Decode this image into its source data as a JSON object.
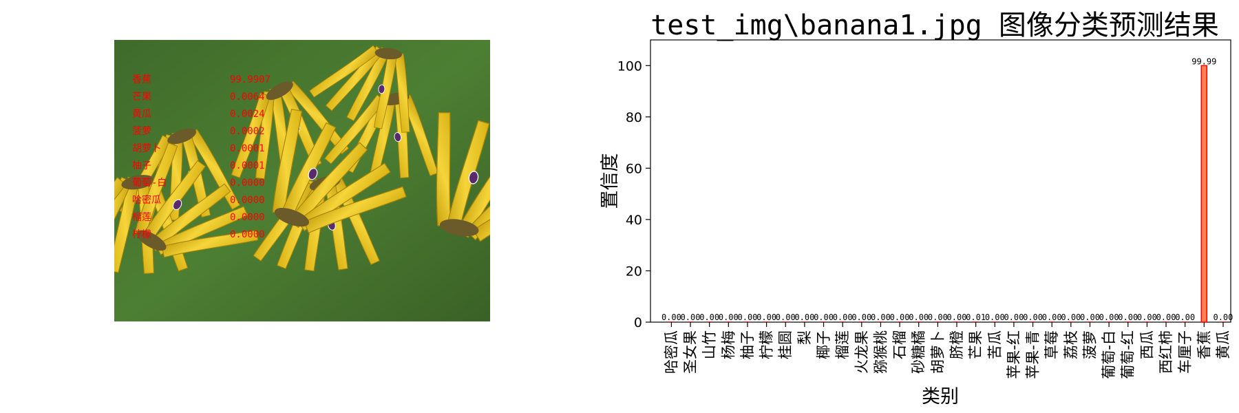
{
  "photo": {
    "predictions": [
      {
        "label": "香蕉",
        "score": "99.9907"
      },
      {
        "label": "芒果",
        "score": "0.0064"
      },
      {
        "label": "黄瓜",
        "score": "0.0024"
      },
      {
        "label": "菠萝",
        "score": "0.0002"
      },
      {
        "label": "胡萝卜",
        "score": "0.0001"
      },
      {
        "label": "柚子",
        "score": "0.0001"
      },
      {
        "label": "葡萄-白",
        "score": "0.0000"
      },
      {
        "label": "哈密瓜",
        "score": "0.0000"
      },
      {
        "label": "榴莲",
        "score": "0.0000"
      },
      {
        "label": "柠檬",
        "score": "0.0000"
      }
    ]
  },
  "chart_data": {
    "type": "bar",
    "title": "test_img\\banana1.jpg 图像分类预测结果",
    "xlabel": "类别",
    "ylabel": "置信度",
    "ylim": [
      0,
      110
    ],
    "yticks": [
      "0",
      "20",
      "40",
      "60",
      "80",
      "100"
    ],
    "categories": [
      "哈密瓜",
      "圣女果",
      "山竹",
      "杨梅",
      "柚子",
      "柠檬",
      "桂圆",
      "梨",
      "椰子",
      "榴莲",
      "火龙果",
      "猕猴桃",
      "石榴",
      "砂糖橘",
      "胡萝卜",
      "脐橙",
      "芒果",
      "苦瓜",
      "苹果-红",
      "苹果-青",
      "草莓",
      "荔枝",
      "菠萝",
      "葡萄-白",
      "葡萄-红",
      "西瓜",
      "西红柿",
      "车厘子",
      "香蕉",
      "黄瓜"
    ],
    "values": [
      0.0,
      0.0,
      0.0,
      0.0,
      0.0,
      0.0,
      0.0,
      0.0,
      0.0,
      0.0,
      0.0,
      0.0,
      0.0,
      0.0,
      0.0,
      0.0,
      0.01,
      0.0,
      0.0,
      0.0,
      0.0,
      0.0,
      0.0,
      0.0,
      0.0,
      0.0,
      0.0,
      0.0,
      99.99,
      0.0
    ],
    "value_labels": [
      "0.00",
      "0.00",
      "0.00",
      "0.00",
      "0.00",
      "0.00",
      "0.00",
      "0.00",
      "0.00",
      "0.00",
      "0.00",
      "0.00",
      "0.00",
      "0.00",
      "0.00",
      "0.00",
      "0.01",
      "0.00",
      "0.00",
      "0.00",
      "0.00",
      "0.00",
      "0.00",
      "0.00",
      "0.00",
      "0.00",
      "0.00",
      "0.00",
      "99.99",
      "0.00"
    ],
    "bar_color": "#ff0000",
    "highlight_color": "#ff7f50",
    "grid": false
  }
}
